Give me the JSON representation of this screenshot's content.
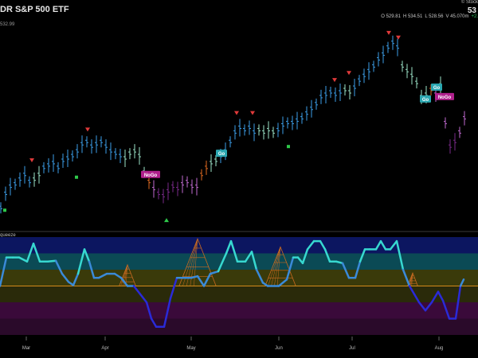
{
  "header": {
    "title": "DR S&P 500 ETF",
    "price_tag": "532.99",
    "brand": "© Stock",
    "last": "53",
    "ohlc": [
      {
        "k": "O",
        "v": "529.81"
      },
      {
        "k": "H",
        "v": "534.51"
      },
      {
        "k": "L",
        "v": "528.56"
      },
      {
        "k": "V",
        "v": "45.070m"
      }
    ],
    "change": "+2."
  },
  "indicator_label": "queeze",
  "colors": {
    "strong_up": "#3b9ee8",
    "weak_up": "#9be3c8",
    "weak_down": "#c06ad0",
    "strong_down": "#7a2a8a",
    "go_fleck": "#e06a20",
    "go_label": "#2aa6b0",
    "nogo_label": "#b0208c",
    "sell_arrow": "#e03a3a",
    "buy_marker": "#2ec84a",
    "osc_line_high": "#37d8d0",
    "osc_line_low": "#2a2ad8",
    "zero_line": "#d48a1a",
    "squeeze": "#c86a20"
  },
  "chart_data": {
    "type": "candlestick",
    "title": "DR S&P 500 ETF",
    "x_months": [
      "Mar",
      "Apr",
      "May",
      "Jun",
      "Jul",
      "Aug"
    ],
    "price_range": [
      480,
      566
    ],
    "price": [
      {
        "x": 0,
        "c": 488,
        "t": "strong_up"
      },
      {
        "x": 6,
        "c": 494,
        "t": "strong_up"
      },
      {
        "x": 12,
        "c": 497,
        "t": "strong_up"
      },
      {
        "x": 18,
        "c": 498,
        "t": "strong_up"
      },
      {
        "x": 24,
        "c": 500,
        "t": "strong_up"
      },
      {
        "x": 30,
        "c": 502,
        "t": "strong_up"
      },
      {
        "x": 36,
        "c": 499,
        "t": "strong_up"
      },
      {
        "x": 42,
        "c": 500,
        "t": "weak_up"
      },
      {
        "x": 48,
        "c": 502,
        "t": "weak_up"
      },
      {
        "x": 54,
        "c": 505,
        "t": "strong_up"
      },
      {
        "x": 60,
        "c": 506,
        "t": "strong_up"
      },
      {
        "x": 66,
        "c": 507,
        "t": "strong_up"
      },
      {
        "x": 72,
        "c": 505,
        "t": "strong_up"
      },
      {
        "x": 78,
        "c": 508,
        "t": "strong_up"
      },
      {
        "x": 84,
        "c": 509,
        "t": "strong_up"
      },
      {
        "x": 90,
        "c": 510,
        "t": "strong_up"
      },
      {
        "x": 96,
        "c": 512,
        "t": "strong_up"
      },
      {
        "x": 102,
        "c": 515,
        "t": "strong_up"
      },
      {
        "x": 108,
        "c": 516,
        "t": "strong_up"
      },
      {
        "x": 114,
        "c": 514,
        "t": "strong_up"
      },
      {
        "x": 120,
        "c": 515,
        "t": "strong_up"
      },
      {
        "x": 126,
        "c": 516,
        "t": "strong_up"
      },
      {
        "x": 132,
        "c": 514,
        "t": "strong_up"
      },
      {
        "x": 138,
        "c": 512,
        "t": "strong_up"
      },
      {
        "x": 144,
        "c": 511,
        "t": "strong_up"
      },
      {
        "x": 150,
        "c": 510,
        "t": "strong_up"
      },
      {
        "x": 156,
        "c": 509,
        "t": "weak_up"
      },
      {
        "x": 162,
        "c": 511,
        "t": "weak_up"
      },
      {
        "x": 168,
        "c": 512,
        "t": "weak_up"
      },
      {
        "x": 174,
        "c": 510,
        "t": "weak_up"
      },
      {
        "x": 180,
        "c": 503,
        "t": "weak_up"
      },
      {
        "x": 186,
        "c": 499,
        "t": "go_fleck"
      },
      {
        "x": 192,
        "c": 496,
        "t": "weak_down"
      },
      {
        "x": 198,
        "c": 494,
        "t": "strong_down"
      },
      {
        "x": 204,
        "c": 493,
        "t": "strong_down"
      },
      {
        "x": 210,
        "c": 495,
        "t": "strong_down"
      },
      {
        "x": 216,
        "c": 497,
        "t": "strong_down"
      },
      {
        "x": 222,
        "c": 496,
        "t": "strong_down"
      },
      {
        "x": 228,
        "c": 498,
        "t": "weak_down"
      },
      {
        "x": 234,
        "c": 499,
        "t": "weak_down"
      },
      {
        "x": 240,
        "c": 497,
        "t": "weak_down"
      },
      {
        "x": 246,
        "c": 497,
        "t": "weak_down"
      },
      {
        "x": 252,
        "c": 502,
        "t": "go_fleck"
      },
      {
        "x": 258,
        "c": 505,
        "t": "go_fleck"
      },
      {
        "x": 264,
        "c": 507,
        "t": "weak_up"
      },
      {
        "x": 270,
        "c": 508,
        "t": "weak_up"
      },
      {
        "x": 276,
        "c": 510,
        "t": "strong_up"
      },
      {
        "x": 282,
        "c": 512,
        "t": "strong_up"
      },
      {
        "x": 288,
        "c": 516,
        "t": "strong_up"
      },
      {
        "x": 294,
        "c": 520,
        "t": "strong_up"
      },
      {
        "x": 300,
        "c": 522,
        "t": "strong_up"
      },
      {
        "x": 306,
        "c": 521,
        "t": "strong_up"
      },
      {
        "x": 312,
        "c": 522,
        "t": "strong_up"
      },
      {
        "x": 318,
        "c": 520,
        "t": "strong_up"
      },
      {
        "x": 324,
        "c": 521,
        "t": "weak_up"
      },
      {
        "x": 330,
        "c": 520,
        "t": "weak_up"
      },
      {
        "x": 336,
        "c": 521,
        "t": "weak_up"
      },
      {
        "x": 342,
        "c": 520,
        "t": "weak_up"
      },
      {
        "x": 348,
        "c": 521,
        "t": "strong_up"
      },
      {
        "x": 354,
        "c": 523,
        "t": "strong_up"
      },
      {
        "x": 360,
        "c": 524,
        "t": "strong_up"
      },
      {
        "x": 366,
        "c": 524,
        "t": "strong_up"
      },
      {
        "x": 372,
        "c": 525,
        "t": "strong_up"
      },
      {
        "x": 378,
        "c": 526,
        "t": "strong_up"
      },
      {
        "x": 384,
        "c": 528,
        "t": "strong_up"
      },
      {
        "x": 390,
        "c": 530,
        "t": "strong_up"
      },
      {
        "x": 396,
        "c": 532,
        "t": "strong_up"
      },
      {
        "x": 402,
        "c": 535,
        "t": "strong_up"
      },
      {
        "x": 408,
        "c": 536,
        "t": "strong_up"
      },
      {
        "x": 414,
        "c": 537,
        "t": "strong_up"
      },
      {
        "x": 420,
        "c": 536,
        "t": "strong_up"
      },
      {
        "x": 426,
        "c": 537,
        "t": "strong_up"
      },
      {
        "x": 432,
        "c": 538,
        "t": "weak_up"
      },
      {
        "x": 438,
        "c": 537,
        "t": "weak_up"
      },
      {
        "x": 444,
        "c": 539,
        "t": "strong_up"
      },
      {
        "x": 450,
        "c": 542,
        "t": "strong_up"
      },
      {
        "x": 456,
        "c": 544,
        "t": "strong_up"
      },
      {
        "x": 462,
        "c": 546,
        "t": "strong_up"
      },
      {
        "x": 468,
        "c": 548,
        "t": "strong_up"
      },
      {
        "x": 474,
        "c": 551,
        "t": "strong_up"
      },
      {
        "x": 480,
        "c": 553,
        "t": "strong_up"
      },
      {
        "x": 486,
        "c": 556,
        "t": "strong_up"
      },
      {
        "x": 492,
        "c": 558,
        "t": "strong_up"
      },
      {
        "x": 498,
        "c": 556,
        "t": "strong_up"
      },
      {
        "x": 504,
        "c": 548,
        "t": "weak_up"
      },
      {
        "x": 510,
        "c": 546,
        "t": "weak_up"
      },
      {
        "x": 516,
        "c": 544,
        "t": "weak_up"
      },
      {
        "x": 522,
        "c": 541,
        "t": "weak_up"
      },
      {
        "x": 528,
        "c": 535,
        "t": "weak_up"
      },
      {
        "x": 534,
        "c": 536,
        "t": "weak_up"
      },
      {
        "x": 540,
        "c": 538,
        "t": "go_fleck"
      },
      {
        "x": 546,
        "c": 536,
        "t": "weak_down"
      },
      {
        "x": 552,
        "c": 540,
        "t": "weak_up"
      },
      {
        "x": 558,
        "c": 524,
        "t": "weak_down"
      },
      {
        "x": 564,
        "c": 514,
        "t": "strong_down"
      },
      {
        "x": 570,
        "c": 516,
        "t": "strong_down"
      },
      {
        "x": 576,
        "c": 520,
        "t": "weak_down"
      },
      {
        "x": 582,
        "c": 526,
        "t": "weak_down"
      }
    ],
    "sell_arrows": [
      {
        "x": 40,
        "v": 508
      },
      {
        "x": 110,
        "v": 521
      },
      {
        "x": 297,
        "v": 528
      },
      {
        "x": 317,
        "v": 528
      },
      {
        "x": 420,
        "v": 542
      },
      {
        "x": 438,
        "v": 545
      },
      {
        "x": 488,
        "v": 562
      },
      {
        "x": 500,
        "v": 560
      }
    ],
    "buy_markers": [
      {
        "x": 6,
        "v": 487,
        "shape": "square"
      },
      {
        "x": 96,
        "v": 501,
        "shape": "square"
      },
      {
        "x": 209,
        "v": 483,
        "shape": "triangle"
      },
      {
        "x": 362,
        "v": 514,
        "shape": "square"
      }
    ],
    "labels": [
      {
        "x": 189,
        "v": 502,
        "text": "NoGo",
        "kind": "nogo"
      },
      {
        "x": 278,
        "v": 511,
        "text": "Go",
        "kind": "go"
      },
      {
        "x": 548,
        "v": 539,
        "text": "Go",
        "kind": "go"
      },
      {
        "x": 534,
        "v": 534,
        "text": "Go",
        "kind": "go"
      },
      {
        "x": 558,
        "v": 535,
        "text": "NoGo",
        "kind": "nogo"
      }
    ],
    "oscillator": {
      "range": [
        -6,
        6
      ],
      "zero": 0,
      "values": [
        [
          0,
          0
        ],
        [
          8,
          3.5
        ],
        [
          16,
          3.5
        ],
        [
          24,
          3.5
        ],
        [
          34,
          3
        ],
        [
          42,
          5.2
        ],
        [
          50,
          3
        ],
        [
          60,
          3
        ],
        [
          70,
          3.1
        ],
        [
          78,
          1.5
        ],
        [
          86,
          0.5
        ],
        [
          92,
          0.1
        ],
        [
          98,
          1.5
        ],
        [
          106,
          4.5
        ],
        [
          112,
          3
        ],
        [
          118,
          1
        ],
        [
          124,
          1
        ],
        [
          134,
          1.5
        ],
        [
          144,
          1.5
        ],
        [
          152,
          1
        ],
        [
          160,
          0
        ],
        [
          168,
          0
        ],
        [
          176,
          -1
        ],
        [
          184,
          -2
        ],
        [
          190,
          -4
        ],
        [
          196,
          -5
        ],
        [
          206,
          -5
        ],
        [
          214,
          -1.5
        ],
        [
          222,
          1
        ],
        [
          232,
          1
        ],
        [
          240,
          1
        ],
        [
          248,
          1.2
        ],
        [
          256,
          0
        ],
        [
          264,
          1.5
        ],
        [
          274,
          1.8
        ],
        [
          284,
          4
        ],
        [
          290,
          5.5
        ],
        [
          298,
          3
        ],
        [
          308,
          3
        ],
        [
          316,
          4.2
        ],
        [
          322,
          2
        ],
        [
          330,
          0.4
        ],
        [
          336,
          0
        ],
        [
          350,
          0
        ],
        [
          360,
          0.8
        ],
        [
          368,
          3.5
        ],
        [
          374,
          3.5
        ],
        [
          380,
          2.8
        ],
        [
          386,
          4.5
        ],
        [
          394,
          5.5
        ],
        [
          402,
          5.5
        ],
        [
          408,
          4.5
        ],
        [
          414,
          3
        ],
        [
          422,
          3
        ],
        [
          430,
          2.8
        ],
        [
          438,
          1
        ],
        [
          446,
          1
        ],
        [
          452,
          3
        ],
        [
          458,
          4.5
        ],
        [
          464,
          4.5
        ],
        [
          472,
          4.5
        ],
        [
          478,
          5.5
        ],
        [
          484,
          4.5
        ],
        [
          490,
          4.5
        ],
        [
          498,
          5.5
        ],
        [
          506,
          2
        ],
        [
          514,
          0
        ],
        [
          520,
          -1
        ],
        [
          526,
          -2
        ],
        [
          534,
          -3
        ],
        [
          542,
          -2
        ],
        [
          550,
          -0.7
        ],
        [
          556,
          -1.8
        ],
        [
          564,
          -4
        ],
        [
          572,
          -4
        ],
        [
          578,
          0
        ],
        [
          582,
          0.8
        ]
      ],
      "bands": [
        "#0c1660",
        "#0b4a55",
        "#3a3a0a",
        "#2a2a0a",
        "#3a0a3a",
        "#2a0a2a"
      ],
      "squeeze_peaks": [
        {
          "x": 160,
          "h": 2.6
        },
        {
          "x": 248,
          "h": 5.8
        },
        {
          "x": 352,
          "h": 4.8
        },
        {
          "x": 518,
          "h": 1.6
        }
      ]
    }
  }
}
